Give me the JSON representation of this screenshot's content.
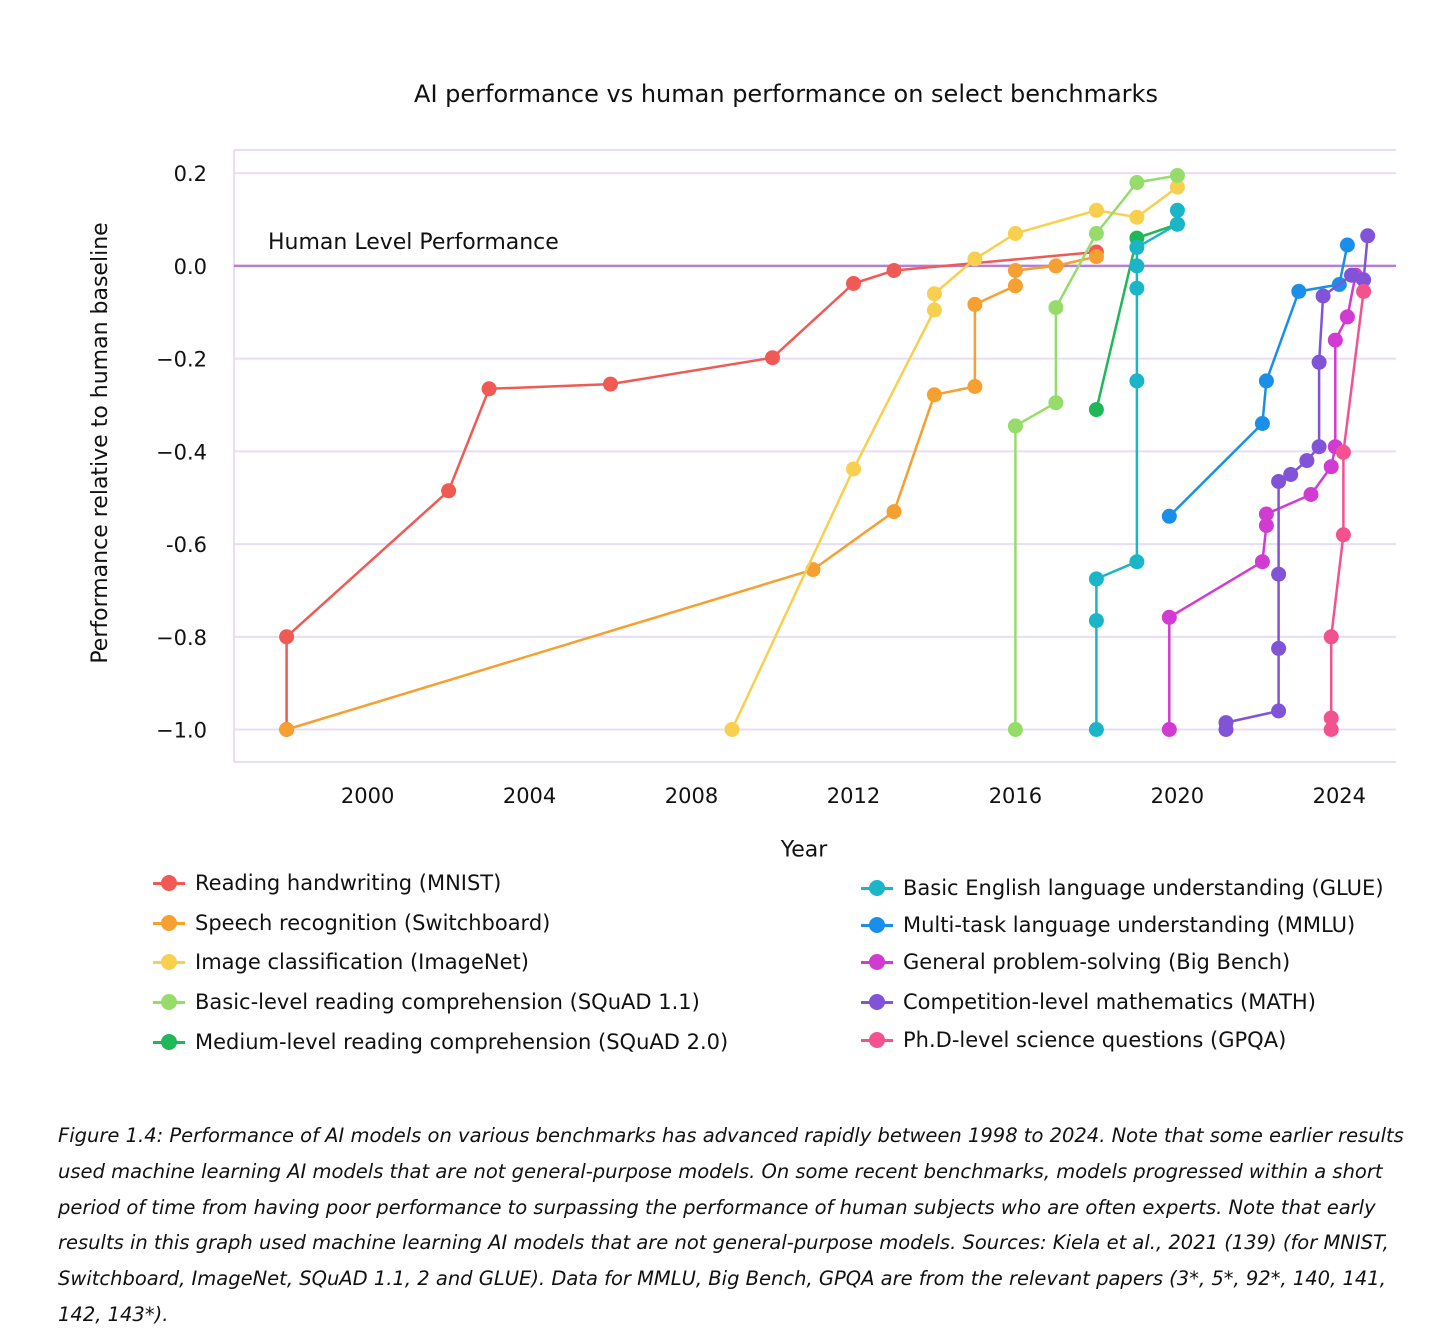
{
  "chart_data": {
    "type": "line",
    "title": "AI performance vs human performance on select benchmarks",
    "xlabel": "Year",
    "ylabel": "Performance relative to human baseline",
    "xlim": [
      1996.7,
      2025.4
    ],
    "ylim": [
      -1.07,
      0.25
    ],
    "x_ticks": [
      2000,
      2004,
      2008,
      2012,
      2016,
      2020,
      2024
    ],
    "y_ticks": [
      0.2,
      0.0,
      -0.2,
      -0.4,
      -0.6,
      -0.8,
      -1.0
    ],
    "y_tick_labels": [
      "0.2",
      "0.0",
      "−0.2",
      "−0.4",
      "-0.6",
      "−0.8",
      "−1.0"
    ],
    "grid": "horizontal",
    "reference_line": {
      "y": 0,
      "label": "Human Level Performance",
      "color": "#b57fd6"
    },
    "series": [
      {
        "name": "Reading handwriting (MNIST)",
        "color": "#f05a54",
        "points": [
          [
            1998,
            -1.0
          ],
          [
            1998,
            -0.8
          ],
          [
            2002,
            -0.485
          ],
          [
            2003,
            -0.265
          ],
          [
            2006,
            -0.255
          ],
          [
            2010,
            -0.198
          ],
          [
            2012,
            -0.038
          ],
          [
            2013,
            -0.01
          ],
          [
            2018,
            0.03
          ]
        ]
      },
      {
        "name": "Speech recognition (Switchboard)",
        "color": "#f5a030",
        "points": [
          [
            1998,
            -1.0
          ],
          [
            2011,
            -0.655
          ],
          [
            2013,
            -0.53
          ],
          [
            2014,
            -0.278
          ],
          [
            2015,
            -0.26
          ],
          [
            2015,
            -0.083
          ],
          [
            2016,
            -0.043
          ],
          [
            2016,
            -0.01
          ],
          [
            2017,
            0.0
          ],
          [
            2018,
            0.02
          ]
        ]
      },
      {
        "name": "Image classification (ImageNet)",
        "color": "#f8cf4e",
        "points": [
          [
            2009,
            -1.0
          ],
          [
            2012,
            -0.438
          ],
          [
            2014,
            -0.095
          ],
          [
            2014,
            -0.06
          ],
          [
            2015,
            0.015
          ],
          [
            2016,
            0.07
          ],
          [
            2018,
            0.12
          ],
          [
            2019,
            0.105
          ],
          [
            2020,
            0.17
          ]
        ]
      },
      {
        "name": "Basic-level reading comprehension (SQuAD 1.1)",
        "color": "#96dc6a",
        "points": [
          [
            2016,
            -1.0
          ],
          [
            2016,
            -0.345
          ],
          [
            2017,
            -0.295
          ],
          [
            2017,
            -0.09
          ],
          [
            2018,
            0.07
          ],
          [
            2019,
            0.18
          ],
          [
            2020,
            0.195
          ]
        ]
      },
      {
        "name": "Medium-level reading comprehension (SQuAD 2.0)",
        "color": "#1fb858",
        "points": [
          [
            2018,
            -0.31
          ],
          [
            2019,
            0.06
          ],
          [
            2020,
            0.09
          ]
        ]
      },
      {
        "name": "Basic English language understanding (GLUE)",
        "color": "#1bb5c8",
        "points": [
          [
            2018,
            -1.0
          ],
          [
            2018,
            -0.765
          ],
          [
            2018,
            -0.675
          ],
          [
            2019,
            -0.638
          ],
          [
            2019,
            -0.248
          ],
          [
            2019,
            -0.048
          ],
          [
            2019,
            0.0
          ],
          [
            2019,
            0.04
          ],
          [
            2020,
            0.09
          ],
          [
            2020,
            0.12
          ]
        ]
      },
      {
        "name": "Multi-task language understanding (MMLU)",
        "color": "#1a8fea",
        "points": [
          [
            2019.8,
            -0.54
          ],
          [
            2022.1,
            -0.34
          ],
          [
            2022.2,
            -0.248
          ],
          [
            2023,
            -0.055
          ],
          [
            2024,
            -0.04
          ],
          [
            2024.2,
            0.045
          ]
        ]
      },
      {
        "name": "General problem-solving (Big Bench)",
        "color": "#d23bd1",
        "points": [
          [
            2019.8,
            -1.0
          ],
          [
            2019.8,
            -0.758
          ],
          [
            2022.1,
            -0.638
          ],
          [
            2022.2,
            -0.56
          ],
          [
            2022.2,
            -0.535
          ],
          [
            2023.3,
            -0.493
          ],
          [
            2023.8,
            -0.433
          ],
          [
            2023.9,
            -0.39
          ],
          [
            2023.9,
            -0.16
          ],
          [
            2024.2,
            -0.11
          ],
          [
            2024.4,
            -0.02
          ]
        ]
      },
      {
        "name": "Competition-level mathematics (MATH)",
        "color": "#8153d6",
        "points": [
          [
            2021.2,
            -1.0
          ],
          [
            2021.2,
            -0.985
          ],
          [
            2022.5,
            -0.96
          ],
          [
            2022.5,
            -0.825
          ],
          [
            2022.5,
            -0.665
          ],
          [
            2022.5,
            -0.465
          ],
          [
            2022.8,
            -0.45
          ],
          [
            2023.2,
            -0.42
          ],
          [
            2023.5,
            -0.39
          ],
          [
            2023.5,
            -0.208
          ],
          [
            2023.6,
            -0.065
          ],
          [
            2024.3,
            -0.02
          ],
          [
            2024.6,
            -0.03
          ],
          [
            2024.7,
            0.065
          ]
        ]
      },
      {
        "name": "Ph.D-level science questions (GPQA)",
        "color": "#f4528f",
        "points": [
          [
            2023.8,
            -1.0
          ],
          [
            2023.8,
            -0.975
          ],
          [
            2023.8,
            -0.8
          ],
          [
            2024.1,
            -0.58
          ],
          [
            2024.1,
            -0.402
          ],
          [
            2024.6,
            -0.055
          ]
        ]
      }
    ]
  },
  "caption": {
    "label": "Figure 1.4:",
    "text": " Performance of AI models on various benchmarks has advanced rapidly between 1998 to 2024. Note that some earlier results used machine learning AI models that are not general-purpose models. On some recent benchmarks, models progressed within a short period of time from having poor performance to surpassing the performance of human subjects who are often experts. Note that early results in this graph used machine learning AI models that are not general-purpose models. Sources: Kiela et al., 2021 (139) (for MNIST, Switchboard, ImageNet, SQuAD 1.1, 2 and GLUE). Data for MMLU, Big Bench, GPQA are from the relevant papers (3*, 5*, 92*, 140, 141, 142, 143*)."
  },
  "colors": {
    "grid": "#e8dcf6",
    "axis_frame": "#e8dcf6",
    "reference": "#b57fd6"
  }
}
